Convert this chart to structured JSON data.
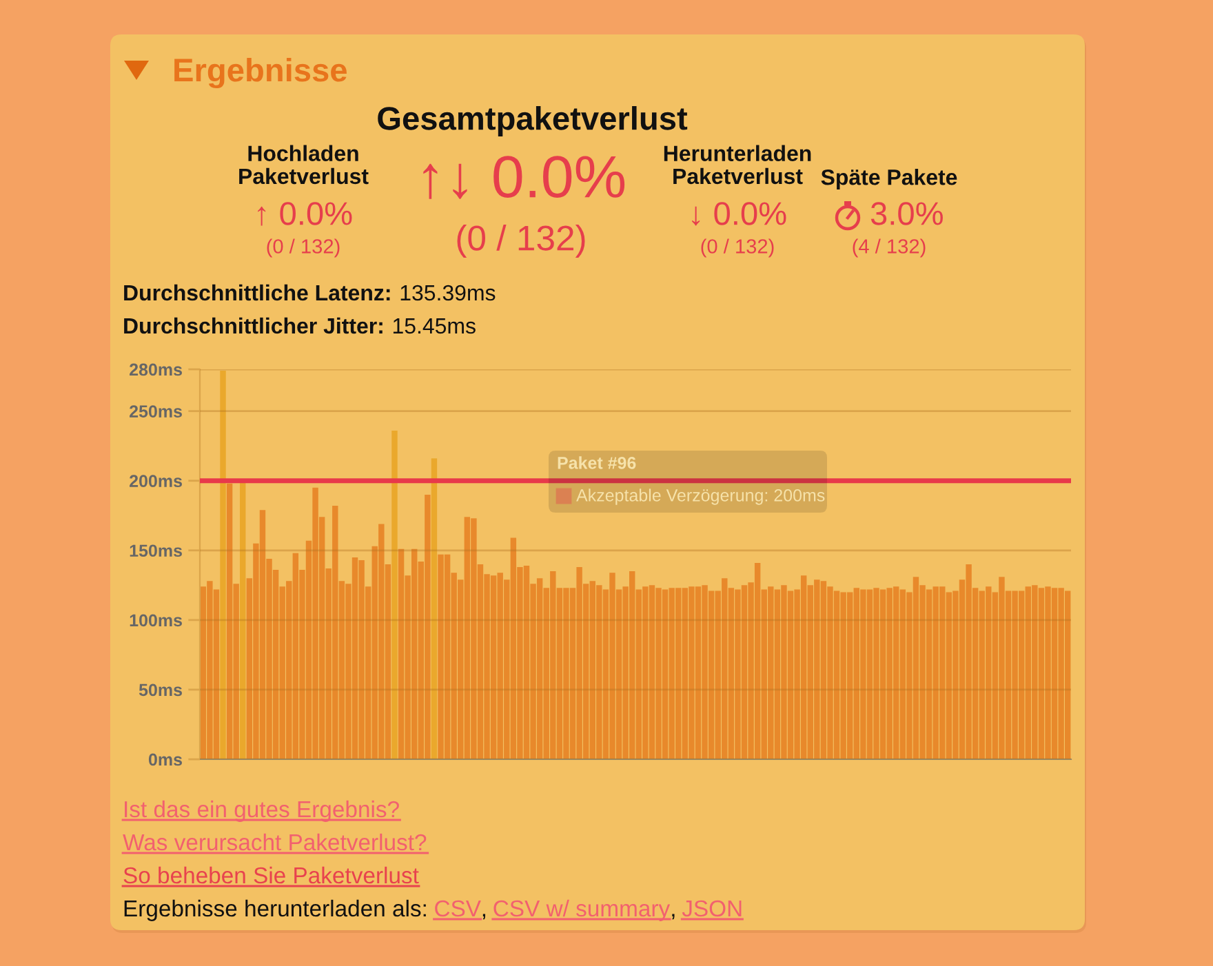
{
  "chart_data": {
    "type": "bar",
    "title": "Ergebnisse",
    "subtitle": "Gesamtpaketverlust",
    "categories": [
      null,
      null,
      null,
      null,
      null,
      null,
      null,
      null,
      null,
      null,
      null,
      null,
      null,
      null,
      null,
      null,
      null,
      null,
      null,
      null,
      null,
      null,
      null,
      null,
      null,
      null,
      null,
      null,
      null,
      null,
      null,
      null,
      null,
      null,
      null,
      null,
      null,
      null,
      null,
      null,
      null,
      null,
      null,
      null,
      null,
      null,
      null,
      null,
      null,
      null,
      null,
      null,
      null,
      null,
      null,
      null,
      null,
      null,
      null,
      null,
      null,
      null,
      null,
      null,
      null,
      null,
      null,
      null,
      null,
      null,
      null,
      null,
      null,
      null,
      null,
      null,
      null,
      null,
      null,
      null,
      null,
      null,
      null,
      null,
      null,
      null,
      null,
      null,
      null,
      null,
      null,
      null,
      null,
      null,
      null,
      null,
      null,
      null,
      null,
      null,
      null,
      null,
      null,
      null,
      null,
      null,
      null,
      null,
      null,
      null,
      null,
      null,
      null,
      null,
      null,
      null,
      null,
      null,
      null,
      null,
      null,
      null,
      null,
      null,
      null,
      null,
      null,
      null,
      null,
      null,
      null,
      null
    ],
    "values": [
      124,
      128,
      122,
      279,
      198,
      126,
      200,
      130,
      155,
      179,
      144,
      136,
      124,
      128,
      148,
      136,
      157,
      195,
      174,
      137,
      182,
      128,
      126,
      145,
      143,
      124,
      153,
      169,
      140,
      236,
      151,
      132,
      151,
      142,
      190,
      216,
      147,
      147,
      134,
      129,
      174,
      173,
      140,
      133,
      132,
      134,
      129,
      159,
      138,
      139,
      126,
      130,
      123,
      135,
      123,
      123,
      123,
      138,
      126,
      128,
      125,
      122,
      134,
      122,
      124,
      135,
      122,
      124,
      125,
      123,
      122,
      123,
      123,
      123,
      124,
      124,
      125,
      121,
      121,
      130,
      123,
      122,
      125,
      127,
      141,
      122,
      124,
      122,
      125,
      121,
      122,
      132,
      125,
      129,
      128,
      124,
      121,
      120,
      120,
      123,
      122,
      122,
      123,
      122,
      123,
      124,
      122,
      120,
      131,
      125,
      122,
      124,
      124,
      120,
      121,
      129,
      140,
      123,
      121,
      124,
      120,
      131,
      121,
      121,
      121,
      124,
      125,
      123,
      124,
      123,
      123,
      121
    ],
    "colors": [
      "#e8892b",
      "#e8892b",
      "#e8892b",
      "#eaa82c",
      "#e8892b",
      "#e8892b",
      "#eaa82c",
      "#e8892b",
      "#e8892b",
      "#e8892b",
      "#e8892b",
      "#e8892b",
      "#e8892b",
      "#e8892b",
      "#e8892b",
      "#e8892b",
      "#e8892b",
      "#e8892b",
      "#e8892b",
      "#e8892b",
      "#e8892b",
      "#e8892b",
      "#e8892b",
      "#e8892b",
      "#e8892b",
      "#e8892b",
      "#e8892b",
      "#e8892b",
      "#e8892b",
      "#eaa82c",
      "#e8892b",
      "#e8892b",
      "#e8892b",
      "#e8892b",
      "#e8892b",
      "#eaa82c",
      "#e8892b",
      "#e8892b",
      "#e8892b",
      "#e8892b",
      "#e8892b",
      "#e8892b",
      "#e8892b",
      "#e8892b",
      "#e8892b",
      "#e8892b",
      "#e8892b",
      "#e8892b",
      "#e8892b",
      "#e8892b",
      "#e8892b",
      "#e8892b",
      "#e8892b",
      "#e8892b",
      "#e8892b",
      "#e8892b",
      "#e8892b",
      "#e8892b",
      "#e8892b",
      "#e8892b",
      "#e8892b",
      "#e8892b",
      "#e8892b",
      "#e8892b",
      "#e8892b",
      "#e8892b",
      "#e8892b",
      "#e8892b",
      "#e8892b",
      "#e8892b",
      "#e8892b",
      "#e8892b",
      "#e8892b",
      "#e8892b",
      "#e8892b",
      "#e8892b",
      "#e8892b",
      "#e8892b",
      "#e8892b",
      "#e8892b",
      "#e8892b",
      "#e8892b",
      "#e8892b",
      "#e8892b",
      "#e8892b",
      "#e8892b",
      "#e8892b",
      "#e8892b",
      "#e8892b",
      "#e8892b",
      "#e8892b",
      "#e8892b",
      "#e8892b",
      "#e8892b",
      "#e8892b",
      "#e8892b",
      "#e8892b",
      "#e8892b",
      "#e8892b",
      "#e8892b",
      "#e8892b",
      "#e8892b",
      "#e8892b",
      "#e8892b",
      "#e8892b",
      "#e8892b",
      "#e8892b",
      "#e8892b",
      "#e8892b",
      "#e8892b",
      "#e8892b",
      "#e8892b",
      "#e8892b",
      "#e8892b",
      "#e8892b",
      "#e8892b",
      "#e8892b",
      "#e8892b",
      "#e8892b",
      "#e8892b",
      "#e8892b",
      "#e8892b",
      "#e8892b",
      "#e8892b",
      "#e8892b",
      "#e8892b",
      "#e8892b",
      "#e8892b",
      "#e8892b",
      "#e8892b",
      "#e8892b",
      "#e8892b"
    ],
    "ylim": [
      0,
      280
    ],
    "yticks": [
      {
        "value": 0,
        "label": "0ms"
      },
      {
        "value": 50,
        "label": "50ms"
      },
      {
        "value": 100,
        "label": "100ms"
      },
      {
        "value": 150,
        "label": "150ms"
      },
      {
        "value": 200,
        "label": "200ms"
      },
      {
        "value": 250,
        "label": "250ms"
      },
      {
        "value": 280,
        "label": "280ms"
      }
    ],
    "grid": "y",
    "tick_labels": "y",
    "ref_lines": [
      {
        "axis": "y",
        "value": 200,
        "label": "Akzeptable Verzögerung: 200ms",
        "color": "#e8394a"
      }
    ],
    "annotations": [
      "Hochladen\nPaketverlust",
      "↑ 0.0%",
      "(0 / 132)",
      "↑↓ 0.0%",
      "(0 / 132)",
      "Herunterladen\nPaketverlust",
      "↓ 0.0%",
      "(0 / 132)",
      "Späte Pakete",
      "3.0%",
      "(4 / 132)",
      "Durchschnittliche Latenz:",
      "135.39ms",
      "Durchschnittlicher Jitter:",
      "15.45ms",
      "Paket #96",
      "Ist das ein gutes Ergebnis?",
      "Was verursacht Paketverlust?",
      "So beheben Sie Paketverlust",
      "Ergebnisse herunterladen als:",
      "CSV",
      ",",
      "CSV w/ summary",
      ",",
      "JSON"
    ]
  }
}
